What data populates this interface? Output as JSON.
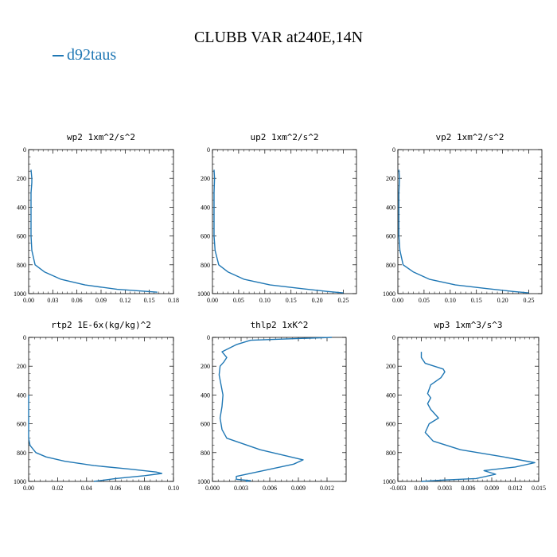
{
  "title": "CLUBB VAR at240E,14N",
  "legend": {
    "label": "d92taus",
    "color": "#1f77b4"
  },
  "chart_data": [
    {
      "type": "line",
      "title": "wp2  1xm^2/s^2",
      "xlim": [
        0,
        0.18
      ],
      "ylim": [
        1000,
        0
      ],
      "grid": false,
      "xticks": [
        "0.00",
        "0.03",
        "0.06",
        "0.09",
        "0.12",
        "0.15",
        "0.18"
      ],
      "yticks": [
        "0",
        "200",
        "400",
        "600",
        "800",
        "1000"
      ],
      "series": [
        {
          "x": [
            0.003,
            0.004,
            0.004,
            0.003,
            0.003,
            0.003,
            0.003,
            0.004,
            0.008,
            0.02,
            0.04,
            0.07,
            0.11,
            0.16
          ],
          "y": [
            140,
            200,
            230,
            300,
            400,
            500,
            600,
            700,
            800,
            850,
            900,
            940,
            970,
            990
          ]
        }
      ]
    },
    {
      "type": "line",
      "title": "up2  1xm^2/s^2",
      "xlim": [
        0,
        0.275
      ],
      "ylim": [
        1000,
        0
      ],
      "grid": false,
      "xticks": [
        "0.00",
        "0.05",
        "0.10",
        "0.15",
        "0.20",
        "0.25"
      ],
      "yticks": [
        "0",
        "200",
        "400",
        "600",
        "800",
        "1000"
      ],
      "series": [
        {
          "x": [
            0.003,
            0.004,
            0.003,
            0.003,
            0.003,
            0.003,
            0.005,
            0.012,
            0.03,
            0.06,
            0.11,
            0.17,
            0.22,
            0.25
          ],
          "y": [
            140,
            200,
            300,
            400,
            500,
            600,
            700,
            800,
            850,
            900,
            940,
            965,
            985,
            995
          ]
        }
      ]
    },
    {
      "type": "line",
      "title": "vp2  1xm^2/s^2",
      "xlim": [
        0,
        0.275
      ],
      "ylim": [
        1000,
        0
      ],
      "grid": false,
      "xticks": [
        "0.00",
        "0.05",
        "0.10",
        "0.15",
        "0.20",
        "0.25"
      ],
      "yticks": [
        "0",
        "200",
        "400",
        "600",
        "800",
        "1000"
      ],
      "series": [
        {
          "x": [
            0.002,
            0.003,
            0.002,
            0.002,
            0.002,
            0.002,
            0.004,
            0.01,
            0.03,
            0.06,
            0.11,
            0.17,
            0.22,
            0.25
          ],
          "y": [
            140,
            200,
            300,
            400,
            500,
            600,
            700,
            800,
            850,
            900,
            940,
            965,
            985,
            995
          ]
        }
      ]
    },
    {
      "type": "line",
      "title": "rtp2  1E-6x(kg/kg)^2",
      "xlim": [
        0,
        0.1
      ],
      "ylim": [
        1000,
        0
      ],
      "grid": false,
      "xticks": [
        "0.00",
        "0.02",
        "0.04",
        "0.06",
        "0.08",
        "0.10"
      ],
      "yticks": [
        "0",
        "200",
        "400",
        "600",
        "800",
        "1000"
      ],
      "series": [
        {
          "x": [
            0.0,
            0.0,
            0.0,
            0.0,
            0.001,
            0.005,
            0.012,
            0.025,
            0.045,
            0.07,
            0.088,
            0.092,
            0.08,
            0.06,
            0.045
          ],
          "y": [
            400,
            500,
            600,
            700,
            750,
            800,
            830,
            860,
            890,
            915,
            935,
            945,
            960,
            980,
            1000
          ]
        }
      ]
    },
    {
      "type": "line",
      "title": "thlp2  1xK^2",
      "xlim": [
        0,
        0.014
      ],
      "ylim": [
        1000,
        0
      ],
      "grid": false,
      "xticks": [
        "0.000",
        "0.003",
        "0.006",
        "0.009",
        "0.012"
      ],
      "yticks": [
        "0",
        "200",
        "400",
        "600",
        "800",
        "1000"
      ],
      "series": [
        {
          "x": [
            0.0125,
            0.004,
            0.0025,
            0.001,
            0.0015,
            0.0012,
            0.0008,
            0.0007,
            0.0009,
            0.0011,
            0.001,
            0.0008,
            0.001,
            0.0015,
            0.005,
            0.0095,
            0.0085,
            0.005,
            0.0025,
            0.0025,
            0.004,
            0.0035
          ],
          "y": [
            0,
            20,
            50,
            100,
            140,
            170,
            200,
            260,
            330,
            400,
            480,
            560,
            640,
            700,
            780,
            850,
            880,
            930,
            965,
            985,
            995,
            1000
          ]
        }
      ]
    },
    {
      "type": "line",
      "title": "wp3  1xm^3/s^3",
      "xlim": [
        -0.003,
        0.015
      ],
      "ylim": [
        1000,
        0
      ],
      "grid": false,
      "xticks": [
        "-0.003",
        "0.000",
        "0.003",
        "0.006",
        "0.009",
        "0.012",
        "0.015"
      ],
      "yticks": [
        "0",
        "200",
        "400",
        "600",
        "800",
        "1000"
      ],
      "series": [
        {
          "x": [
            0.0,
            0.0,
            0.0005,
            0.0028,
            0.003,
            0.0025,
            0.0012,
            0.0008,
            0.0012,
            0.0008,
            0.0012,
            0.0022,
            0.001,
            0.0005,
            0.0015,
            0.005,
            0.0105,
            0.0145,
            0.012,
            0.008,
            0.0095,
            0.007,
            0.003,
            0.0
          ],
          "y": [
            100,
            140,
            180,
            220,
            240,
            280,
            330,
            390,
            420,
            460,
            500,
            560,
            600,
            660,
            720,
            780,
            830,
            870,
            900,
            925,
            950,
            980,
            990,
            1000
          ]
        }
      ]
    }
  ]
}
